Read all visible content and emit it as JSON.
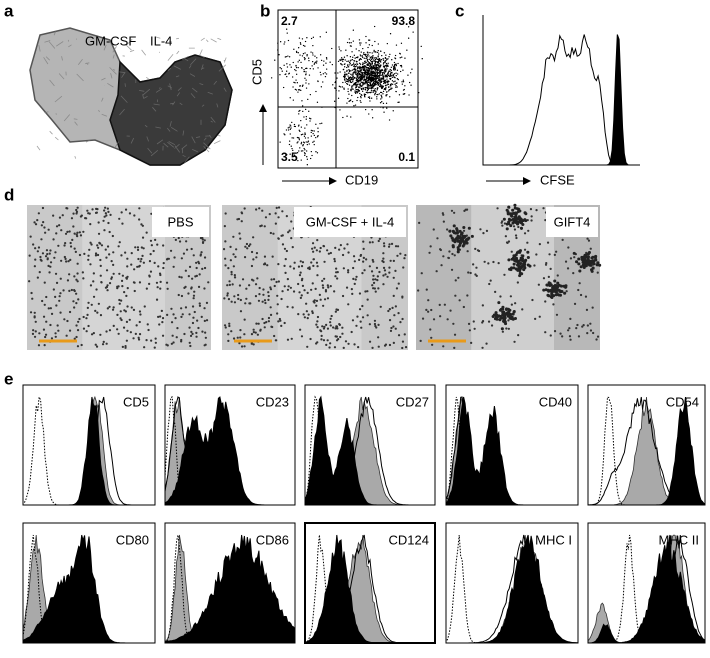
{
  "panels": {
    "a": {
      "label": "a",
      "texts": [
        "GM-CSF",
        "IL-4"
      ]
    },
    "b": {
      "label": "b",
      "y_axis": "CD5",
      "x_axis": "CD19",
      "quadrants": {
        "top_left": 2.7,
        "top_right": 93.8,
        "bottom_left": 3.5,
        "bottom_right": 0.1
      }
    },
    "c": {
      "label": "c",
      "x_axis": "CFSE"
    },
    "d": {
      "label": "d",
      "images": [
        "PBS",
        "GM-CSF + IL-4",
        "GIFT4"
      ]
    },
    "e": {
      "label": "e",
      "markers": [
        "CD5",
        "CD23",
        "CD27",
        "CD40",
        "CD54",
        "CD80",
        "CD86",
        "CD124",
        "MHC I",
        "MHC II"
      ]
    }
  }
}
